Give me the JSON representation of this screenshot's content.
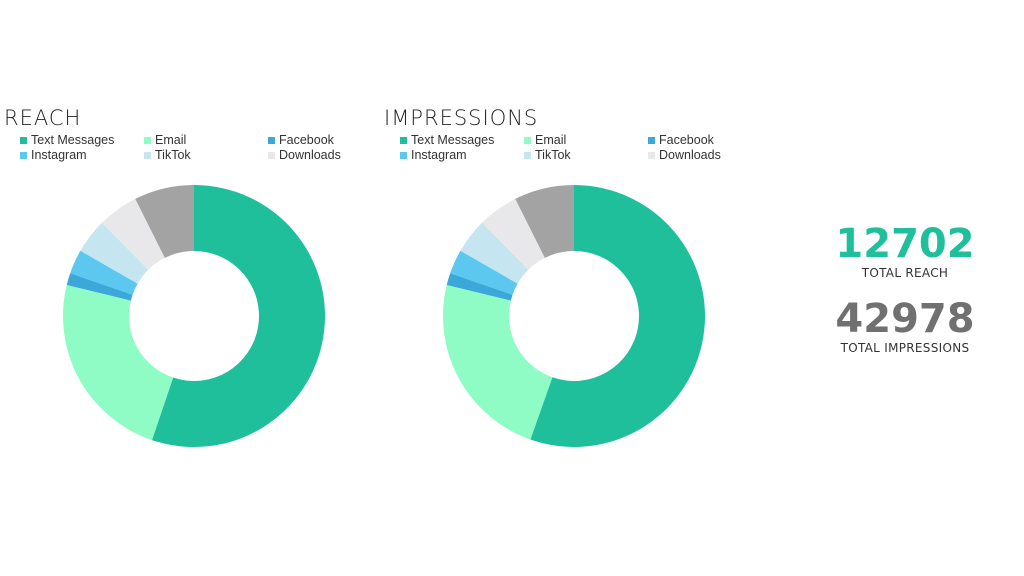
{
  "chart_data": [
    {
      "type": "pie",
      "donut": true,
      "title": "REACH",
      "legend": [
        "Text Messages",
        "Email",
        "Facebook",
        "Instagram",
        "TikTok",
        "Downloads"
      ],
      "legend_placement": "top",
      "slices": [
        {
          "name": "Text Messages",
          "value": 55.2,
          "color": "#1FBF9B"
        },
        {
          "name": "Email",
          "value": 23.6,
          "color": "#8FFCC6"
        },
        {
          "name": "Facebook",
          "value": 1.5,
          "color": "#3BA8D9"
        },
        {
          "name": "Instagram",
          "value": 3.0,
          "color": "#5CC8F0"
        },
        {
          "name": "TikTok",
          "value": 4.3,
          "color": "#C5E6F0"
        },
        {
          "name": "Downloads",
          "value": 5.0,
          "color": "#E8E8EA"
        },
        {
          "name": "",
          "value": 7.4,
          "color": "#A3A3A3"
        }
      ]
    },
    {
      "type": "pie",
      "donut": true,
      "title": "IMPRESSIONS",
      "legend": [
        "Text Messages",
        "Email",
        "Facebook",
        "Instagram",
        "TikTok",
        "Downloads"
      ],
      "legend_placement": "top",
      "slices": [
        {
          "name": "Text Messages",
          "value": 55.4,
          "color": "#1FBF9B"
        },
        {
          "name": "Email",
          "value": 23.4,
          "color": "#8FFCC6"
        },
        {
          "name": "Facebook",
          "value": 1.5,
          "color": "#3BA8D9"
        },
        {
          "name": "Instagram",
          "value": 3.0,
          "color": "#5CC8F0"
        },
        {
          "name": "TikTok",
          "value": 4.3,
          "color": "#C5E6F0"
        },
        {
          "name": "Downloads",
          "value": 5.0,
          "color": "#E8E8EA"
        },
        {
          "name": "",
          "value": 7.4,
          "color": "#A3A3A3"
        }
      ]
    }
  ],
  "kpis": [
    {
      "value": "12702",
      "label": "TOTAL REACH",
      "color": "#1FBF9B"
    },
    {
      "value": "42978",
      "label": "TOTAL IMPRESSIONS",
      "color": "#707070"
    }
  ]
}
